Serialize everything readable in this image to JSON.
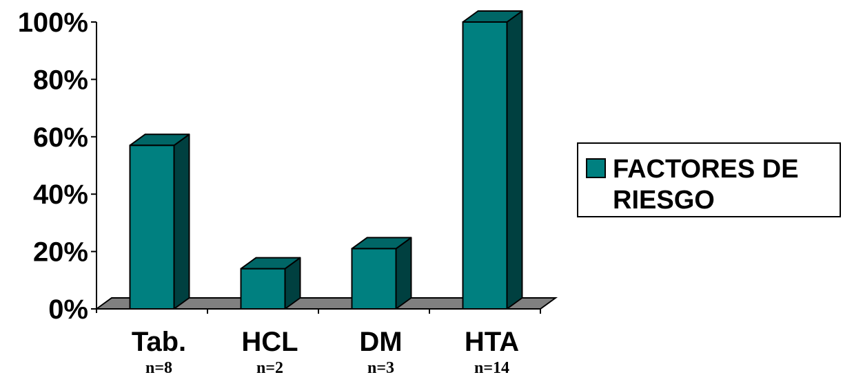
{
  "chart_data": {
    "type": "bar",
    "categories": [
      "Tab.",
      "HCL",
      "DM",
      "HTA"
    ],
    "sample_sizes": [
      "n=8",
      "n=2",
      "n=3",
      "n=14"
    ],
    "series": [
      {
        "name": "FACTORES DE RIESGO",
        "values": [
          57,
          14,
          21,
          100
        ]
      }
    ],
    "ylim": [
      0,
      100
    ],
    "yticks": [
      0,
      20,
      40,
      60,
      80,
      100
    ],
    "ytick_labels": [
      "0%",
      "20%",
      "40%",
      "60%",
      "80%",
      "100%"
    ],
    "legend": {
      "label_lines": [
        "FACTORES DE",
        "RIESGO"
      ],
      "position": "right"
    },
    "style": "3d",
    "grid": false,
    "colors": {
      "bar_front": "#008080",
      "bar_top": "#006666",
      "bar_side": "#004040",
      "floor": "#808080"
    }
  }
}
